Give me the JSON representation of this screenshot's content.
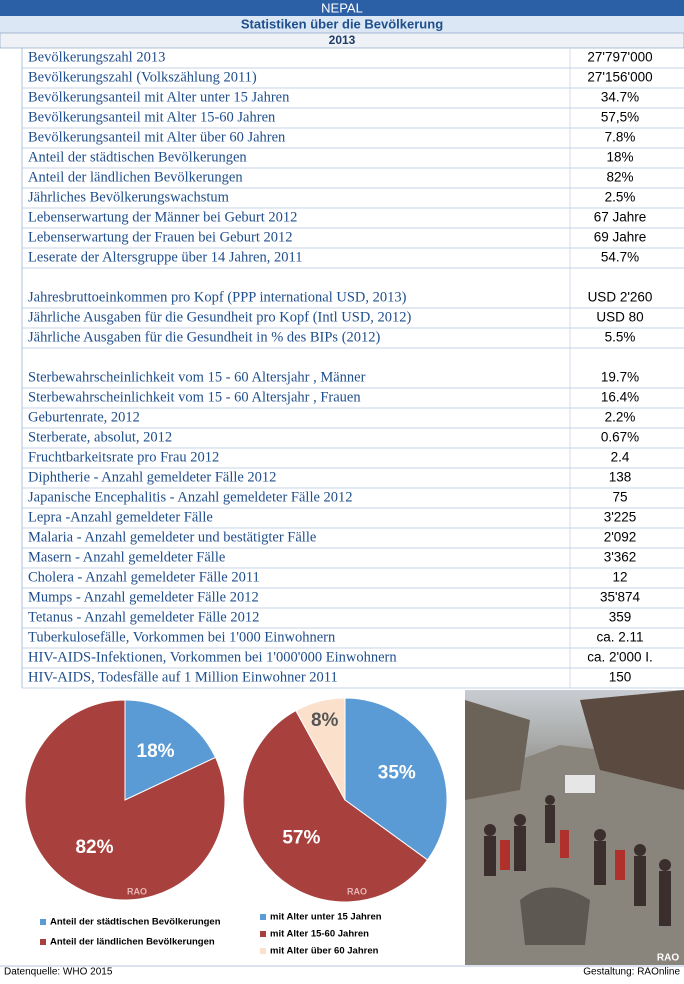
{
  "header": {
    "title": "NEPAL",
    "subtitle": "Statistiken über die Bevölkerung",
    "year": "2013"
  },
  "table": {
    "groups": [
      [
        [
          "Bevölkerungszahl 2013",
          "27'797'000"
        ],
        [
          "Bevölkerungszahl (Volkszählung 2011)",
          "27'156'000"
        ],
        [
          "Bevölkerungsanteil mit Alter unter 15 Jahren",
          "34.7%"
        ],
        [
          "Bevölkerungsanteil mit Alter 15-60 Jahren",
          "57,5%"
        ],
        [
          "Bevölkerungsanteil mit Alter über 60 Jahren",
          "7.8%"
        ],
        [
          "Anteil der städtischen Bevölkerungen",
          "18%"
        ],
        [
          "Anteil der ländlichen Bevölkerungen",
          "82%"
        ],
        [
          "Jährliches Bevölkerungswachstum",
          "2.5%"
        ],
        [
          "Lebenserwartung der Männer bei Geburt 2012",
          "67 Jahre"
        ],
        [
          "Lebenserwartung der Frauen bei Geburt 2012",
          "69 Jahre"
        ],
        [
          "Leserate der Altersgruppe über 14 Jahren, 2011",
          "54.7%"
        ]
      ],
      [
        [
          "Jahresbruttoeinkommen pro Kopf  (PPP international USD, 2013)",
          "USD 2'260"
        ],
        [
          "Jährliche Ausgaben für die Gesundheit pro Kopf (Intl USD, 2012)",
          "USD 80"
        ],
        [
          "Jährliche Ausgaben für die Gesundheit in % des BIPs (2012)",
          "5.5%"
        ]
      ],
      [
        [
          "Sterbewahrscheinlichkeit vom 15 - 60 Altersjahr , Männer",
          "19.7%"
        ],
        [
          "Sterbewahrscheinlichkeit vom 15 - 60 Altersjahr , Frauen",
          "16.4%"
        ],
        [
          "Geburtenrate, 2012",
          "2.2%"
        ],
        [
          "Sterberate, absolut, 2012",
          "0.67%"
        ],
        [
          "Fruchtbarkeitsrate pro Frau 2012",
          "2.4"
        ],
        [
          "Diphtherie - Anzahl gemeldeter Fälle 2012",
          "138"
        ],
        [
          "Japanische Encephalitis - Anzahl gemeldeter Fälle 2012",
          "75"
        ],
        [
          "Lepra -Anzahl gemeldeter Fälle",
          "3'225"
        ],
        [
          "Malaria - Anzahl gemeldeter und bestätigter Fälle",
          "2'092"
        ],
        [
          "Masern - Anzahl gemeldeter Fälle",
          "3'362"
        ],
        [
          "Cholera - Anzahl gemeldeter Fälle 2011",
          "12"
        ],
        [
          "Mumps - Anzahl gemeldeter Fälle 2012",
          "35'874"
        ],
        [
          "Tetanus - Anzahl gemeldeter Fälle 2012",
          "359"
        ],
        [
          "Tuberkulosefälle, Vorkommen bei 1'000 Einwohnern",
          "ca. 2.11"
        ],
        [
          "HIV-AIDS-Infektionen, Vorkommen bei 1'000'000 Einwohnern",
          "ca. 2'000 I."
        ],
        [
          "HIV-AIDS,  Todesfälle auf 1 Million Einwohner 2011",
          "150"
        ]
      ]
    ]
  },
  "pies": [
    {
      "values": [
        18,
        82
      ],
      "value_labels": [
        "18%",
        "82%"
      ],
      "colors": [
        "#5b9bd5",
        "#a8403d"
      ],
      "legend": [
        "Anteil der städtischen Bevölkerungen",
        "Anteil der ländlichen Bevölkerungen"
      ],
      "watermark": "RAO"
    },
    {
      "values": [
        35,
        57,
        8
      ],
      "value_labels": [
        "35%",
        "57%",
        "8%"
      ],
      "colors": [
        "#5b9bd5",
        "#a8403d",
        "#fbe1cb"
      ],
      "legend": [
        "mit Alter unter 15 Jahren",
        "mit Alter 15-60 Jahren",
        "mit Alter über 60 Jahren"
      ],
      "watermark": "RAO"
    }
  ],
  "photo": {
    "watermark": "RAO"
  },
  "footer": {
    "source": "Datenquelle:  WHO 2015",
    "credit": "Gestaltung: RAOnline"
  }
}
